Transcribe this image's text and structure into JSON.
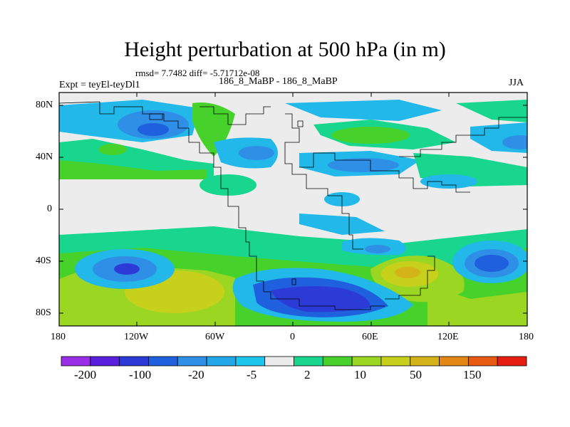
{
  "title": "Height perturbation at 500 hPa (in m)",
  "stats": "rmsd= 7.7482 diff= -5.71712e-08",
  "left_string": "Expt = teyEl-teyDl1",
  "center_string": "186_8_MaBP - 186_8_MaBP",
  "right_string": "JJA",
  "y_ticks": [
    "80N",
    "40N",
    "0",
    "40S",
    "80S"
  ],
  "x_ticks": [
    "180",
    "120W",
    "60W",
    "0",
    "60E",
    "120E",
    "180"
  ],
  "colorbar_labels": [
    "-200",
    "-100",
    "-20",
    "-5",
    "2",
    "10",
    "50",
    "150"
  ],
  "colorbar_colors": [
    "#9a2ee6",
    "#5a1fdc",
    "#2d3bd6",
    "#1e60dd",
    "#2f8fe6",
    "#22a8e8",
    "#1cc6ec",
    "#ececec",
    "#18d68e",
    "#46d22a",
    "#9ad622",
    "#c7d11c",
    "#d4b318",
    "#e28614",
    "#e85a12",
    "#e61e10"
  ],
  "field_colors": {
    "background": "#ececec",
    "deep_blue": "#2d3bd6",
    "blue": "#1e60dd",
    "mid_blue": "#2f8fe6",
    "light_blue": "#22b8ea",
    "green_teal": "#18d68e",
    "green": "#46d22a",
    "yellow_green": "#9ad622",
    "yellow": "#c7d11c",
    "orange_yellow": "#d4b318"
  }
}
